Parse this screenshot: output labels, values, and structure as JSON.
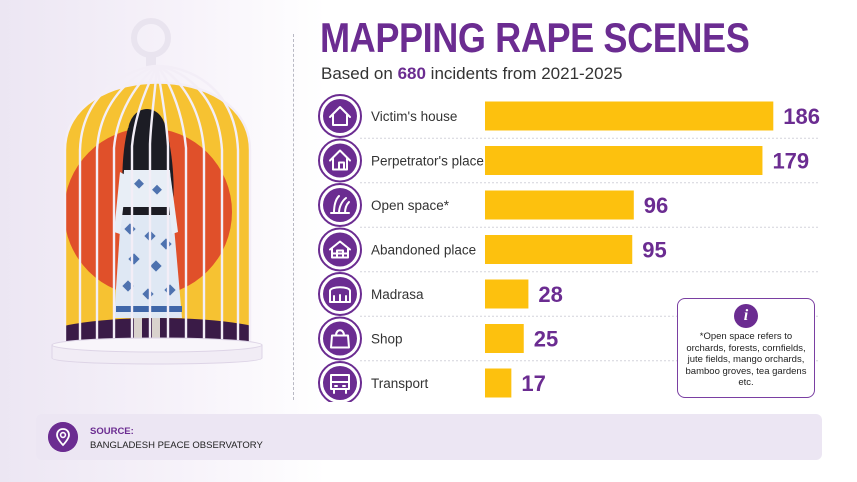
{
  "title": "MAPPING RAPE SCENES",
  "subtitle_prefix": "Based on ",
  "subtitle_count": "680",
  "subtitle_suffix": " incidents from 2021-2025",
  "colors": {
    "accent": "#6b2c91",
    "bar": "#fdc10e",
    "icon_circle": "#6b2c91",
    "label": "#333333"
  },
  "chart_data": {
    "type": "bar",
    "orientation": "horizontal",
    "categories": [
      "Victim's house",
      "Perpetrator's place",
      "Open space*",
      "Abandoned place",
      "Madrasa",
      "Shop",
      "Transport"
    ],
    "values": [
      186,
      179,
      96,
      95,
      28,
      25,
      17
    ],
    "icons": [
      "house-icon",
      "perpetrator-place-icon",
      "open-space-icon",
      "abandoned-place-icon",
      "madrasa-icon",
      "shop-icon",
      "transport-icon"
    ],
    "title": "MAPPING RAPE SCENES",
    "grid": false,
    "legend": "none"
  },
  "note": {
    "icon": "info-icon",
    "text": "*Open space refers to orchards, forests, cornfields, jute fields, mango orchards, bamboo groves, tea gardens etc."
  },
  "source": {
    "icon": "location-pin-icon",
    "label": "SOURCE:",
    "value": "BANGLADESH PEACE OBSERVATORY"
  }
}
